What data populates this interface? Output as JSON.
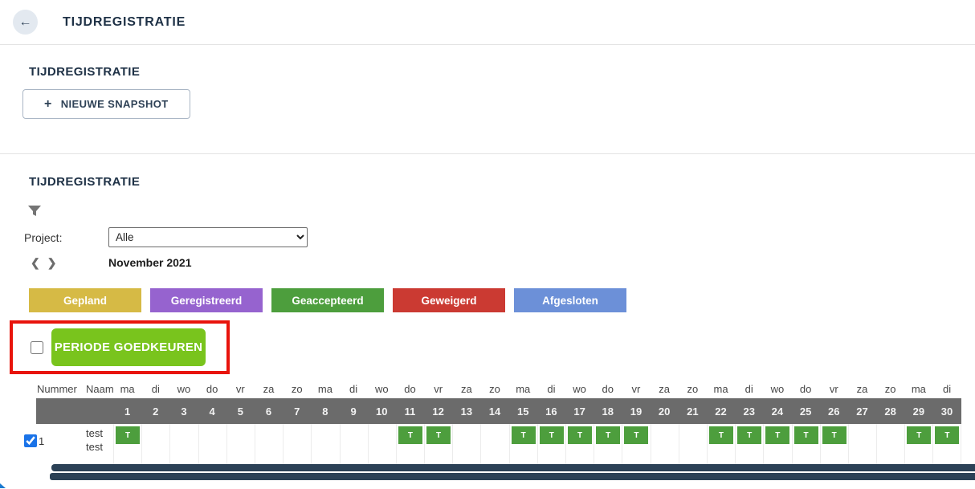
{
  "colors": {
    "navy": "#1e3146",
    "divider": "#e4e4e4",
    "band_gray": "#6b6b6b",
    "approve_green": "#79c41d",
    "accept_green": "#4d9e3d",
    "checkbox_blue": "#1a73e8",
    "red_box": "#e8140c",
    "scrollbar_navy": "#2b4156",
    "scrollbar_end": "#8fa6bb",
    "corner_blue": "#1b7ad0"
  },
  "header": {
    "title": "TIJDREGISTRATIE",
    "back_icon": "←"
  },
  "snapshot_section": {
    "heading": "TIJDREGISTRATIE",
    "plus_icon": "+",
    "new_snapshot_button": "NIEUWE SNAPSHOT"
  },
  "filter_section": {
    "heading": "TIJDREGISTRATIE",
    "project_label": "Project:",
    "project_selected": "Alle",
    "prev_icon": "❮",
    "next_icon": "❯",
    "month_label": "November 2021",
    "legend": [
      {
        "label": "Gepland",
        "color": "#d6ba45"
      },
      {
        "label": "Geregistreerd",
        "color": "#9663cf"
      },
      {
        "label": "Geaccepteerd",
        "color": "#4d9e3d"
      },
      {
        "label": "Geweigerd",
        "color": "#cb3a32"
      },
      {
        "label": "Afgesloten",
        "color": "#6c90d8"
      }
    ],
    "approve_checkbox_checked": true,
    "approve_button": "PERIODE GOEDKEUREN"
  },
  "table": {
    "col_nummer": "Nummer",
    "col_naam": "Naam",
    "weekdays": [
      "ma",
      "di",
      "wo",
      "do",
      "vr",
      "za",
      "zo",
      "ma",
      "di",
      "wo",
      "do",
      "vr",
      "za",
      "zo",
      "ma",
      "di",
      "wo",
      "do",
      "vr",
      "za",
      "zo",
      "ma",
      "di",
      "wo",
      "do",
      "vr",
      "za",
      "zo",
      "ma",
      "di"
    ],
    "days": [
      1,
      2,
      3,
      4,
      5,
      6,
      7,
      8,
      9,
      10,
      11,
      12,
      13,
      14,
      15,
      16,
      17,
      18,
      19,
      20,
      21,
      22,
      23,
      24,
      25,
      26,
      27,
      28,
      29,
      30
    ],
    "t_label": "T",
    "rows": [
      {
        "checked": true,
        "nummer": "1",
        "naam_lines": [
          "test",
          "test"
        ],
        "t_days": [
          1,
          11,
          12,
          15,
          16,
          17,
          18,
          19,
          22,
          23,
          24,
          25,
          26,
          29,
          30
        ]
      }
    ]
  }
}
